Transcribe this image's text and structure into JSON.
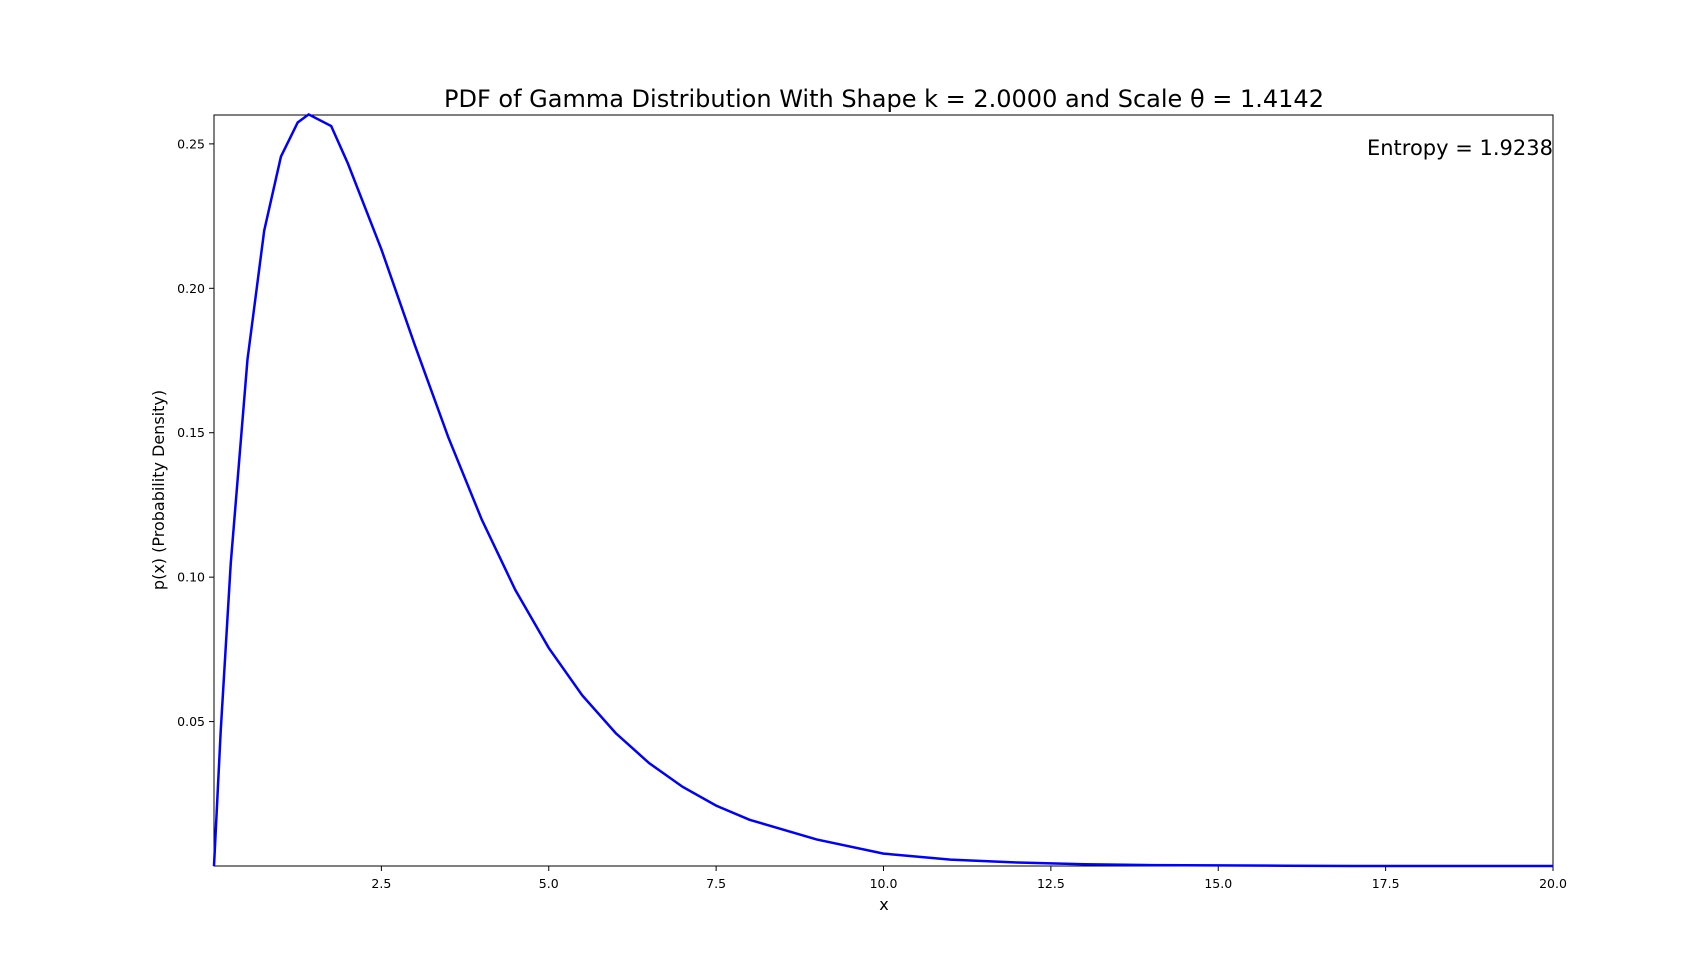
{
  "chart_data": {
    "type": "line",
    "title": "PDF of Gamma Distribution With Shape k = 2.0000 and Scale θ = 1.4142",
    "xlabel": "x",
    "ylabel": "p(x) (Probability Density)",
    "xlim": [
      0.0,
      20.0
    ],
    "ylim": [
      0.0,
      0.26
    ],
    "x_ticks": [
      2.5,
      5.0,
      7.5,
      10.0,
      12.5,
      15.0,
      17.5,
      20.0
    ],
    "x_tick_labels": [
      "2.5",
      "5.0",
      "7.5",
      "10.0",
      "12.5",
      "15.0",
      "17.5",
      "20.0"
    ],
    "y_ticks": [
      0.05,
      0.1,
      0.15,
      0.2,
      0.25
    ],
    "y_tick_labels": [
      "0.05",
      "0.10",
      "0.15",
      "0.20",
      "0.25"
    ],
    "grid": false,
    "annotation": "Entropy = 1.9238",
    "annotation_position": "top-right",
    "series": [
      {
        "color": "#0000ff",
        "x": [
          0,
          0.1,
          0.25,
          0.5,
          0.75,
          1.0,
          1.25,
          1.4142,
          1.75,
          2.0,
          2.5,
          3.0,
          3.5,
          4.0,
          4.5,
          5.0,
          5.5,
          6.0,
          6.5,
          7.0,
          7.5,
          8.0,
          9.0,
          10.0,
          11.0,
          12.0,
          13.0,
          14.0,
          15.0,
          16.0,
          17.0,
          18.0,
          19.0,
          20.0
        ],
        "y": [
          0,
          0.0466,
          0.1047,
          0.1753,
          0.22,
          0.2456,
          0.2574,
          0.2602,
          0.2562,
          0.2432,
          0.2135,
          0.1803,
          0.1484,
          0.1199,
          0.0956,
          0.0755,
          0.0591,
          0.046,
          0.0356,
          0.0274,
          0.0209,
          0.016,
          0.0092,
          0.0043,
          0.0022,
          0.0012,
          0.0006,
          0.0003,
          0.0002,
          0.0001,
          0.0,
          0.0,
          0.0,
          0.0
        ]
      }
    ]
  }
}
